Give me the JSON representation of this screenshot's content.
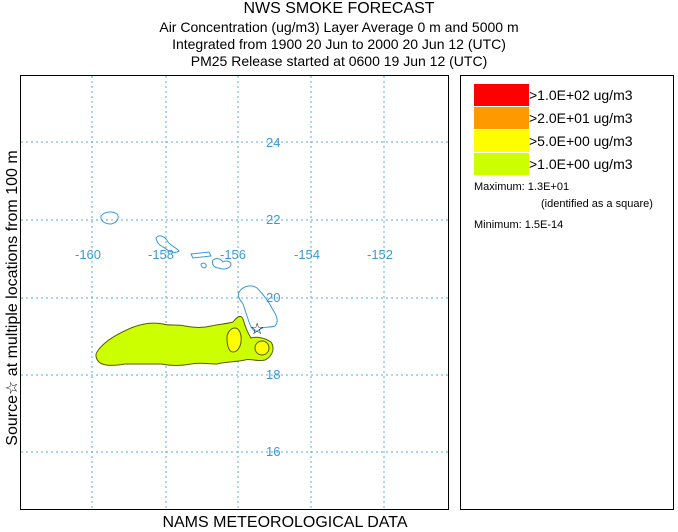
{
  "header": {
    "title": "NWS SMOKE FORECAST",
    "line2": "Air Concentration (ug/m3) Layer Average    0 m and  5000 m",
    "line3": "Integrated from 1900 20 Jun to 2000 20 Jun 12 (UTC)",
    "line4": "PM25 Release started at 0600 19 Jun 12 (UTC)"
  },
  "side_label": "Source☆ at multiple locations   from  100 m",
  "footer": "NAMS METEOROLOGICAL DATA",
  "map": {
    "longitude_labels": [
      "-160",
      "-158",
      "-156",
      "-154",
      "-152"
    ],
    "latitude_labels": [
      "24",
      "22",
      "20",
      "18",
      "16"
    ],
    "grid_color": "#5aaedc",
    "coast_color": "#3a9ad6",
    "source_marker": "star-icon"
  },
  "legend": {
    "items": [
      {
        "label": ">1.0E+02 ug/m3",
        "color": "#ff0000"
      },
      {
        "label": ">2.0E+01 ug/m3",
        "color": "#ff9900"
      },
      {
        "label": ">5.0E+00 ug/m3",
        "color": "#ffff00"
      },
      {
        "label": ">1.0E+00 ug/m3",
        "color": "#ccff00"
      }
    ],
    "maximum": "Maximum: 1.3E+01",
    "maximum_note": "(identified as a square)",
    "minimum": "Minimum: 1.5E-14"
  }
}
